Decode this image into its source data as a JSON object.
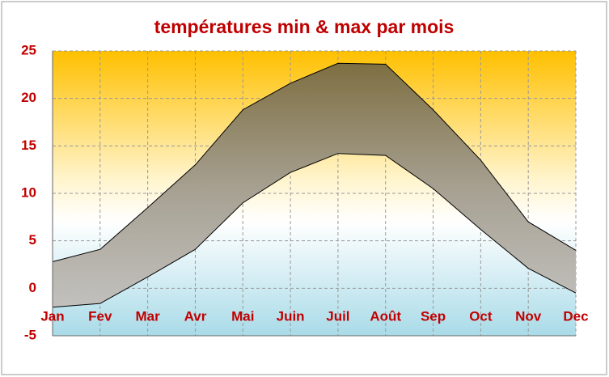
{
  "chart_data": {
    "type": "range-area",
    "title": "températures min & max par mois",
    "categories": [
      "Jan",
      "Fev",
      "Mar",
      "Avr",
      "Mai",
      "Juin",
      "Juil",
      "Août",
      "Sep",
      "Oct",
      "Nov",
      "Dec"
    ],
    "series": [
      {
        "color": "#000000",
        "values": [
          2.8,
          4.1,
          8.5,
          13.0,
          18.8,
          21.6,
          23.7,
          23.6,
          18.8,
          13.5,
          7.0,
          4.0
        ]
      },
      {
        "color": "#000000",
        "values": [
          -2.0,
          -1.6,
          1.2,
          4.1,
          9.0,
          12.2,
          14.2,
          14.0,
          10.5,
          6.2,
          2.1,
          -0.5
        ]
      }
    ],
    "ylim": [
      -5,
      25
    ],
    "yticks": [
      -5,
      0,
      5,
      10,
      15,
      20,
      25
    ],
    "grid": true
  }
}
